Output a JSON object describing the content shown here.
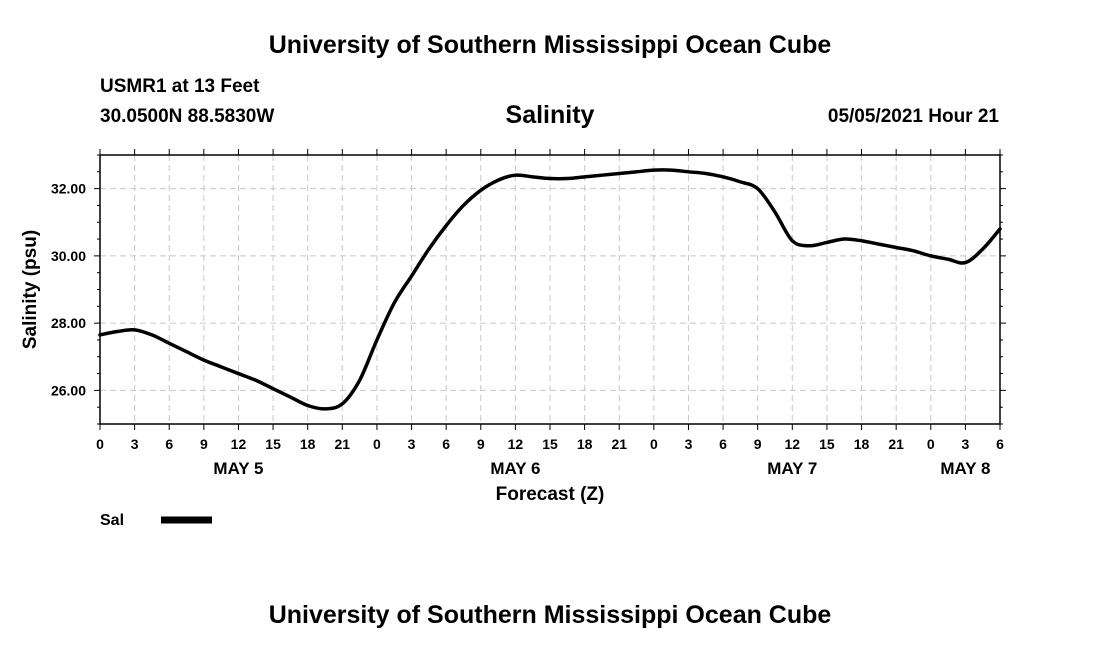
{
  "header": {
    "title": "University of Southern Mississippi Ocean Cube",
    "station": "USMR1 at 13 Feet",
    "coordinates": "30.0500N  88.5830W",
    "variable_title": "Salinity",
    "issued": "05/05/2021 Hour 21"
  },
  "footer": {
    "title": "University of Southern Mississippi Ocean Cube"
  },
  "legend": {
    "label": "Sal",
    "color": "#000000"
  },
  "chart_data": {
    "type": "line",
    "title": "Salinity",
    "xlabel": "Forecast (Z)",
    "ylabel": "Salinity (psu)",
    "xlim": [
      0,
      78
    ],
    "ylim": [
      25.0,
      33.0
    ],
    "grid": true,
    "y_ticks": [
      26,
      28,
      30,
      32
    ],
    "y_tick_labels": [
      "26.00",
      "28.00",
      "30.00",
      "32.00"
    ],
    "x_ticks": [
      0,
      3,
      6,
      9,
      12,
      15,
      18,
      21,
      24,
      27,
      30,
      33,
      36,
      39,
      42,
      45,
      48,
      51,
      54,
      57,
      60,
      63,
      66,
      69,
      72,
      75,
      78
    ],
    "x_tick_labels": [
      "0",
      "3",
      "6",
      "9",
      "12",
      "15",
      "18",
      "21",
      "0",
      "3",
      "6",
      "9",
      "12",
      "15",
      "18",
      "21",
      "0",
      "3",
      "6",
      "9",
      "12",
      "15",
      "18",
      "21",
      "0",
      "3",
      "6"
    ],
    "day_labels": [
      {
        "label": "MAY 5",
        "hour": 12
      },
      {
        "label": "MAY 6",
        "hour": 36
      },
      {
        "label": "MAY 7",
        "hour": 60
      },
      {
        "label": "MAY 8",
        "hour": 75
      }
    ],
    "series": [
      {
        "name": "Sal",
        "x": [
          0,
          1.5,
          3,
          4.5,
          6,
          7.5,
          9,
          10.5,
          12,
          13.5,
          15,
          16.5,
          18,
          19.5,
          21,
          22.5,
          24,
          25.5,
          27,
          28.5,
          30,
          31.5,
          33,
          34.5,
          36,
          37.5,
          39,
          40.5,
          42,
          43.5,
          45,
          46.5,
          48,
          49.5,
          51,
          52.5,
          54,
          55.5,
          57,
          58.5,
          60,
          61.5,
          63,
          64.5,
          66,
          67.5,
          69,
          70.5,
          72,
          73.5,
          75,
          76.5,
          78
        ],
        "y": [
          27.65,
          27.75,
          27.8,
          27.65,
          27.4,
          27.15,
          26.9,
          26.7,
          26.5,
          26.3,
          26.05,
          25.8,
          25.55,
          25.45,
          25.6,
          26.3,
          27.5,
          28.6,
          29.4,
          30.2,
          30.9,
          31.5,
          31.95,
          32.25,
          32.4,
          32.35,
          32.3,
          32.3,
          32.35,
          32.4,
          32.45,
          32.5,
          32.55,
          32.55,
          32.5,
          32.45,
          32.35,
          32.2,
          32.0,
          31.3,
          30.45,
          30.3,
          30.4,
          30.5,
          30.45,
          30.35,
          30.25,
          30.15,
          30.0,
          29.9,
          29.8,
          30.2,
          30.8
        ]
      }
    ]
  }
}
